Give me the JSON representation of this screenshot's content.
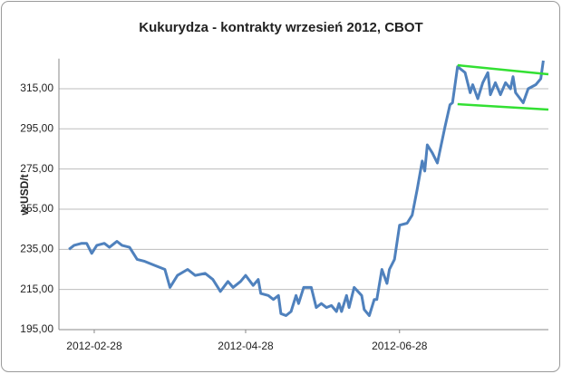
{
  "chart_data": {
    "type": "line",
    "title": "Kukurydza - kontrakty wrzesień 2012, CBOT",
    "y_label": "w USD/t",
    "x": [
      "2012-02-18",
      "2012-02-20",
      "2012-02-23",
      "2012-02-25",
      "2012-02-27",
      "2012-02-29",
      "2012-03-03",
      "2012-03-05",
      "2012-03-08",
      "2012-03-10",
      "2012-03-13",
      "2012-03-16",
      "2012-03-19",
      "2012-03-23",
      "2012-03-27",
      "2012-03-29",
      "2012-04-01",
      "2012-04-05",
      "2012-04-08",
      "2012-04-12",
      "2012-04-15",
      "2012-04-17",
      "2012-04-18",
      "2012-04-21",
      "2012-04-23",
      "2012-04-26",
      "2012-04-28",
      "2012-05-01",
      "2012-05-03",
      "2012-05-04",
      "2012-05-07",
      "2012-05-09",
      "2012-05-11",
      "2012-05-12",
      "2012-05-14",
      "2012-05-16",
      "2012-05-18",
      "2012-05-19",
      "2012-05-21",
      "2012-05-24",
      "2012-05-26",
      "2012-05-28",
      "2012-05-30",
      "2012-06-01",
      "2012-06-03",
      "2012-06-04",
      "2012-06-05",
      "2012-06-07",
      "2012-06-08",
      "2012-06-10",
      "2012-06-13",
      "2012-06-14",
      "2012-06-16",
      "2012-06-18",
      "2012-06-19",
      "2012-06-21",
      "2012-06-23",
      "2012-06-24",
      "2012-06-26",
      "2012-06-28",
      "2012-07-01",
      "2012-07-03",
      "2012-07-05",
      "2012-07-07",
      "2012-07-08",
      "2012-07-09",
      "2012-07-11",
      "2012-07-13",
      "2012-07-15",
      "2012-07-16",
      "2012-07-18",
      "2012-07-19",
      "2012-07-21",
      "2012-07-24",
      "2012-07-26",
      "2012-07-27",
      "2012-07-29",
      "2012-07-31",
      "2012-08-02",
      "2012-08-03",
      "2012-08-05",
      "2012-08-07",
      "2012-08-09",
      "2012-08-11",
      "2012-08-12",
      "2012-08-13",
      "2012-08-16",
      "2012-08-18",
      "2012-08-21",
      "2012-08-23",
      "2012-08-24"
    ],
    "series": [
      {
        "color": "#4f81bd",
        "values": [
          235,
          237,
          238,
          238,
          233,
          237,
          238,
          236,
          239,
          237,
          236,
          230,
          229,
          227,
          225,
          216,
          222,
          225,
          222,
          223,
          220,
          216,
          214,
          219,
          216,
          219,
          222,
          217,
          220,
          213,
          212,
          210,
          212,
          203,
          202,
          204,
          212,
          208,
          216,
          216,
          206,
          208,
          206,
          207,
          204,
          208,
          204,
          212,
          206,
          216,
          212,
          205,
          202,
          210,
          210,
          225,
          218,
          225,
          230,
          247,
          248,
          252,
          265,
          279,
          274,
          287,
          283,
          278,
          290,
          296,
          307,
          308,
          326,
          323,
          313,
          317,
          310,
          318,
          323,
          312,
          318,
          312,
          318,
          315,
          321,
          313,
          308,
          315,
          317,
          320,
          329
        ]
      }
    ],
    "trendlines": [
      {
        "color": "#33e033",
        "x": [
          "2012-07-21",
          "2012-08-26"
        ],
        "values": [
          326.7,
          322.2
        ]
      },
      {
        "color": "#33e033",
        "x": [
          "2012-07-21",
          "2012-08-26"
        ],
        "values": [
          307.3,
          304.6
        ]
      }
    ],
    "xlim": [
      "2012-02-14",
      "2012-08-26"
    ],
    "xticks": [
      "2012-02-28",
      "2012-04-28",
      "2012-06-28"
    ],
    "ylim": [
      195,
      330
    ],
    "yticks": [
      {
        "value": 195,
        "label": "195,00"
      },
      {
        "value": 215,
        "label": "215,00"
      },
      {
        "value": 235,
        "label": "235,00"
      },
      {
        "value": 255,
        "label": "255,00"
      },
      {
        "value": 275,
        "label": "275,00"
      },
      {
        "value": 295,
        "label": "295,00"
      },
      {
        "value": 315,
        "label": "315,00"
      }
    ],
    "grid": true
  }
}
